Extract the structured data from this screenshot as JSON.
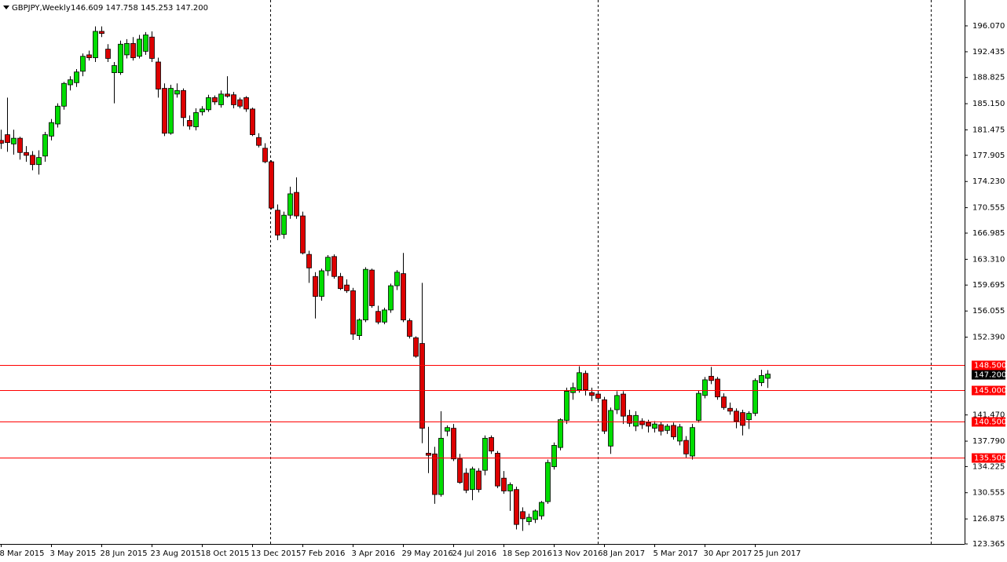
{
  "chart_data": {
    "type": "candlestick",
    "title": "GBPJPY,Weekly",
    "subtitle": "146.609 147.758 145.253 147.200",
    "up_color": "#00dd00",
    "down_color": "#dd0000",
    "categories": [
      "8 Mar 2015",
      null,
      null,
      null,
      null,
      null,
      null,
      null,
      "3 May 2015",
      null,
      null,
      null,
      null,
      null,
      null,
      null,
      "28 Jun 2015",
      null,
      null,
      null,
      null,
      null,
      null,
      null,
      "23 Aug 2015",
      null,
      null,
      null,
      null,
      null,
      null,
      null,
      "18 Oct 2015",
      null,
      null,
      null,
      null,
      null,
      null,
      null,
      "13 Dec 2015",
      null,
      null,
      null,
      null,
      null,
      null,
      null,
      "7 Feb 2016",
      null,
      null,
      null,
      null,
      null,
      null,
      null,
      "3 Apr 2016",
      null,
      null,
      null,
      null,
      null,
      null,
      null,
      "29 May 2016",
      null,
      null,
      null,
      null,
      null,
      null,
      null,
      "24 Jul 2016",
      null,
      null,
      null,
      null,
      null,
      null,
      null,
      "18 Sep 2016",
      null,
      null,
      null,
      null,
      null,
      null,
      null,
      "13 Nov 2016",
      null,
      null,
      null,
      null,
      null,
      null,
      null,
      "8 Jan 2017",
      null,
      null,
      null,
      null,
      null,
      null,
      null,
      "5 Mar 2017",
      null,
      null,
      null,
      null,
      null,
      null,
      null,
      "30 Apr 2017",
      null,
      null,
      null,
      null,
      null,
      null,
      null,
      "25 Jun 2017",
      null,
      null
    ],
    "open": [
      180.0,
      180.8,
      179.5,
      180.3,
      178.3,
      177.9,
      176.6,
      177.8,
      180.6,
      182.3,
      184.8,
      187.8,
      188.1,
      189.7,
      192.0,
      191.6,
      195.3,
      192.8,
      189.5,
      189.5,
      192.0,
      193.6,
      191.8,
      192.5,
      194.5,
      191.0,
      187.3,
      181.0,
      186.5,
      187.0,
      182.8,
      181.9,
      184.0,
      184.3,
      186.0,
      185.0,
      186.5,
      186.4,
      185.7,
      186.0,
      184.4,
      180.4,
      178.9,
      177.0,
      170.2,
      166.8,
      169.5,
      172.7,
      169.4,
      164.0,
      160.9,
      158.1,
      161.7,
      163.7,
      160.9,
      159.7,
      158.9,
      152.6,
      154.8,
      161.8,
      156.0,
      154.5,
      156.2,
      159.6,
      161.3,
      154.7,
      152.3,
      151.5,
      136.1,
      136.0,
      130.3,
      139.2,
      139.6,
      135.3,
      133.3,
      131.0,
      133.6,
      133.7,
      138.3,
      136.1,
      132.6,
      130.8,
      131.0,
      127.9,
      126.5,
      126.8,
      127.3,
      129.3,
      134.2,
      136.9,
      140.7,
      144.6,
      145.0,
      147.3,
      144.6,
      144.4,
      143.6,
      137.1,
      142.2,
      144.4,
      141.4,
      139.9,
      140.6,
      140.4,
      139.6,
      140.1,
      139.3,
      140.0,
      137.8,
      137.9,
      135.7,
      140.7,
      144.2,
      146.9,
      146.5,
      144.0,
      142.4,
      142.0,
      141.8,
      140.8,
      141.7,
      146.0,
      146.609
    ],
    "high": [
      181.5,
      186.0,
      181.5,
      180.5,
      179.2,
      178.5,
      178.6,
      181.2,
      183.0,
      185.2,
      188.2,
      189.0,
      190.0,
      192.2,
      192.6,
      196.0,
      196.0,
      193.5,
      191.0,
      194.0,
      194.2,
      194.5,
      194.8,
      195.2,
      195.3,
      191.6,
      188.0,
      187.8,
      188.0,
      187.3,
      183.5,
      184.5,
      184.8,
      186.4,
      186.3,
      187.0,
      189.0,
      186.8,
      186.0,
      186.2,
      184.6,
      181.0,
      179.6,
      177.2,
      171.0,
      170.0,
      173.5,
      174.8,
      170.0,
      164.5,
      161.5,
      162.0,
      163.9,
      164.0,
      161.4,
      160.5,
      159.3,
      155.0,
      162.2,
      162.0,
      156.8,
      156.5,
      159.9,
      161.8,
      164.2,
      155.0,
      152.5,
      160.0,
      139.8,
      137.0,
      142.0,
      140.0,
      140.2,
      136.0,
      134.0,
      134.2,
      134.0,
      138.6,
      138.6,
      136.4,
      133.6,
      132.0,
      131.4,
      128.5,
      127.6,
      128.2,
      129.4,
      135.2,
      137.6,
      141.0,
      145.3,
      146.0,
      148.3,
      147.7,
      145.3,
      144.8,
      144.0,
      142.5,
      144.8,
      144.8,
      142.2,
      142.0,
      141.0,
      140.8,
      140.6,
      140.5,
      140.2,
      140.4,
      140.2,
      138.5,
      140.2,
      144.9,
      146.8,
      148.2,
      146.8,
      144.5,
      143.2,
      142.4,
      142.2,
      142.0,
      146.6,
      147.8,
      147.758
    ],
    "low": [
      178.8,
      178.4,
      178.0,
      177.3,
      177.0,
      175.8,
      175.2,
      177.0,
      180.0,
      181.8,
      184.3,
      187.0,
      187.5,
      189.0,
      191.2,
      191.0,
      194.5,
      191.0,
      185.2,
      189.2,
      191.5,
      191.2,
      191.5,
      192.0,
      191.0,
      186.0,
      180.6,
      180.8,
      186.0,
      182.0,
      181.5,
      181.4,
      183.5,
      184.0,
      185.0,
      184.6,
      186.0,
      184.5,
      184.5,
      184.0,
      180.6,
      179.0,
      176.8,
      170.3,
      166.0,
      166.2,
      169.0,
      169.0,
      164.0,
      160.0,
      155.0,
      157.5,
      161.0,
      160.6,
      159.0,
      158.6,
      152.0,
      152.0,
      154.5,
      156.5,
      154.2,
      154.2,
      155.8,
      159.0,
      154.5,
      152.2,
      149.5,
      137.5,
      133.3,
      129.0,
      130.0,
      138.5,
      135.0,
      131.8,
      130.5,
      129.5,
      130.6,
      133.0,
      136.0,
      131.2,
      130.4,
      128.0,
      125.4,
      125.2,
      126.0,
      126.3,
      126.8,
      129.0,
      133.8,
      136.5,
      140.2,
      143.6,
      144.6,
      144.2,
      143.4,
      143.2,
      138.8,
      136.0,
      141.6,
      140.2,
      139.8,
      139.2,
      139.5,
      139.0,
      139.0,
      138.6,
      138.8,
      138.0,
      137.2,
      135.5,
      135.2,
      140.4,
      143.8,
      145.8,
      143.6,
      142.2,
      141.5,
      139.6,
      138.6,
      139.5,
      141.3,
      145.5,
      145.253
    ],
    "close": [
      179.6,
      179.7,
      180.3,
      178.3,
      177.9,
      176.6,
      177.6,
      180.8,
      182.5,
      184.8,
      188.0,
      188.5,
      189.6,
      191.8,
      191.6,
      195.3,
      195.0,
      191.5,
      190.5,
      193.5,
      193.6,
      191.6,
      194.2,
      194.8,
      191.5,
      187.2,
      181.0,
      187.3,
      187.0,
      183.2,
      182.0,
      183.9,
      184.4,
      186.0,
      185.4,
      186.5,
      186.2,
      185.0,
      184.8,
      184.4,
      180.8,
      179.3,
      177.0,
      170.5,
      166.7,
      169.5,
      172.5,
      169.4,
      164.2,
      162.1,
      158.1,
      161.7,
      163.6,
      160.9,
      159.2,
      158.9,
      152.8,
      154.8,
      161.9,
      156.8,
      154.5,
      156.2,
      159.6,
      161.5,
      154.8,
      152.5,
      149.7,
      139.6,
      135.8,
      130.3,
      138.2,
      139.7,
      135.3,
      132.0,
      130.9,
      133.9,
      131.0,
      138.2,
      136.4,
      131.5,
      130.8,
      131.7,
      126.1,
      126.9,
      127.1,
      128.0,
      129.2,
      134.8,
      137.2,
      140.8,
      144.8,
      145.3,
      147.4,
      145.0,
      144.2,
      143.8,
      139.2,
      142.1,
      144.2,
      141.3,
      140.3,
      141.4,
      140.1,
      139.9,
      140.2,
      139.2,
      139.9,
      138.4,
      139.8,
      136.0,
      139.7,
      144.5,
      146.4,
      146.3,
      144.0,
      142.5,
      142.0,
      140.6,
      140.0,
      141.7,
      146.3,
      147.0,
      147.2
    ],
    "ylim": [
      123.365,
      199.7
    ],
    "yticks": [
      {
        "value": 196.07,
        "label": "196.070"
      },
      192.435,
      188.825,
      {
        "value": 185.15,
        "label": "185.150"
      },
      181.475,
      177.905,
      {
        "value": 174.23,
        "label": "174.230"
      },
      170.555,
      166.985,
      {
        "value": 163.31,
        "label": "163.310"
      },
      159.695,
      156.055,
      {
        "value": 152.39,
        "label": "152.390"
      },
      {
        "value": 141.47,
        "label": "141.470"
      },
      {
        "value": 137.79,
        "label": "137.790"
      },
      134.225,
      130.555,
      126.875,
      123.365
    ],
    "hlines": [
      {
        "value": 148.5,
        "label": "148.500"
      },
      {
        "value": 145.0,
        "label": "145.000"
      },
      {
        "value": 140.5,
        "label": "140.500"
      },
      {
        "value": 135.5,
        "label": "135.500"
      }
    ],
    "hline_color": "#ff0000",
    "bid": {
      "value": 147.2,
      "label": "147.200"
    }
  }
}
